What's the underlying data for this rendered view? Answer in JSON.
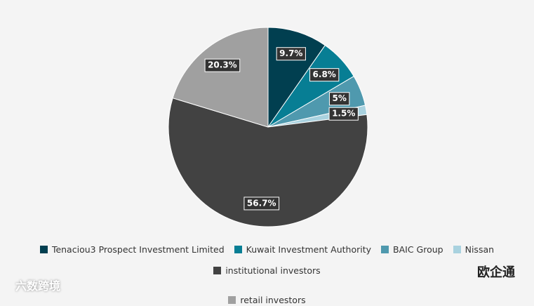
{
  "chart_data": {
    "type": "pie",
    "categories": [
      "Tenaciou3 Prospect Investment Limited",
      "Kuwait Investment Authority",
      "BAIC Group",
      "Nissan",
      "institutional investors",
      "retail investors"
    ],
    "values": [
      9.7,
      6.8,
      5,
      1.5,
      56.7,
      20.3
    ],
    "value_labels": [
      "9.7%",
      "6.8%",
      "5%",
      "1.5%",
      "56.7%",
      "20.3%"
    ],
    "colors": [
      "#013f50",
      "#077e94",
      "#4f99ae",
      "#a9d2df",
      "#424242",
      "#a0a0a0"
    ]
  },
  "watermarks": [
    "六数跨境",
    "欧企通"
  ]
}
